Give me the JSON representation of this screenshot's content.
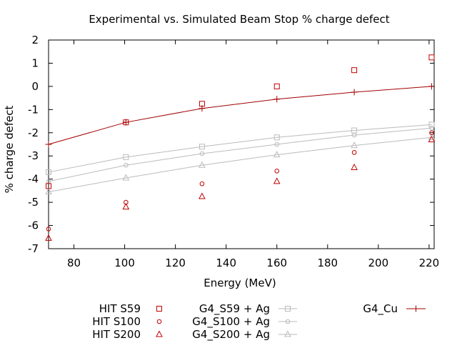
{
  "chart_data": {
    "type": "scatter",
    "title": "Experimental vs. Simulated Beam Stop % charge defect",
    "xlabel": "Energy (MeV)",
    "ylabel": "% charge defect",
    "xlim": [
      70,
      222
    ],
    "ylim": [
      -7,
      2
    ],
    "xticks": [
      80,
      100,
      120,
      140,
      160,
      180,
      200,
      220
    ],
    "yticks": [
      -7,
      -6,
      -5,
      -4,
      -3,
      -2,
      -1,
      0,
      1,
      2
    ],
    "grid": false,
    "legend_position": "bottom",
    "series": [
      {
        "name": "HIT S59",
        "kind": "points",
        "marker": "square",
        "color": "#c00000",
        "x": [
          70,
          100.5,
          130.5,
          160,
          190.5,
          221
        ],
        "y": [
          -4.3,
          -1.55,
          -0.75,
          0.0,
          0.7,
          1.25
        ]
      },
      {
        "name": "HIT S100",
        "kind": "points",
        "marker": "circle",
        "color": "#c00000",
        "x": [
          70,
          100.5,
          130.5,
          160,
          190.5,
          221
        ],
        "y": [
          -6.15,
          -5.0,
          -4.2,
          -3.65,
          -2.85,
          -2.0
        ]
      },
      {
        "name": "HIT S200",
        "kind": "points",
        "marker": "triangle",
        "color": "#c00000",
        "x": [
          70,
          100.5,
          130.5,
          160,
          190.5,
          221
        ],
        "y": [
          -6.55,
          -5.2,
          -4.75,
          -4.1,
          -3.5,
          -2.3
        ]
      },
      {
        "name": "G4_S59 + Ag",
        "kind": "linepoints",
        "marker": "square",
        "color": "#bbbbbb",
        "x": [
          70,
          100.5,
          130.5,
          160,
          190.5,
          221
        ],
        "y": [
          -3.7,
          -3.05,
          -2.6,
          -2.2,
          -1.9,
          -1.65
        ]
      },
      {
        "name": "G4_S100 + Ag",
        "kind": "linepoints",
        "marker": "circle",
        "color": "#bbbbbb",
        "x": [
          70,
          100.5,
          130.5,
          160,
          190.5,
          221
        ],
        "y": [
          -4.1,
          -3.4,
          -2.9,
          -2.5,
          -2.1,
          -1.8
        ]
      },
      {
        "name": "G4_S200 + Ag",
        "kind": "linepoints",
        "marker": "triangle",
        "color": "#bbbbbb",
        "x": [
          70,
          100.5,
          130.5,
          160,
          190.5,
          221
        ],
        "y": [
          -4.55,
          -3.95,
          -3.4,
          -2.95,
          -2.55,
          -2.2
        ]
      },
      {
        "name": "G4_Cu",
        "kind": "linepoints",
        "marker": "plus",
        "color": "#a00000",
        "x": [
          70,
          100.5,
          130.5,
          160,
          190.5,
          221
        ],
        "y": [
          -2.5,
          -1.55,
          -0.95,
          -0.55,
          -0.25,
          0.0
        ]
      }
    ]
  }
}
